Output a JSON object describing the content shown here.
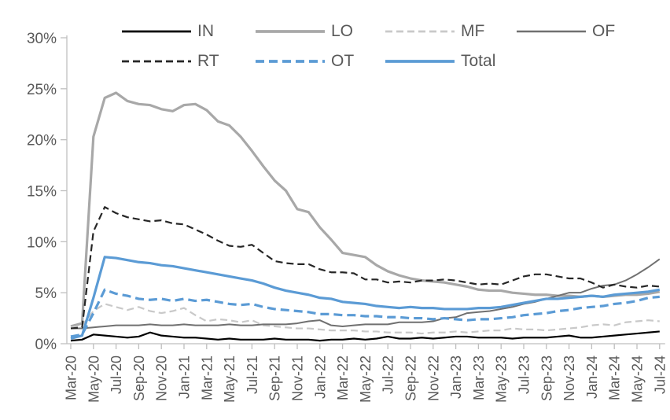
{
  "chart_data": {
    "type": "line",
    "title": "",
    "xlabel": "",
    "ylabel": "",
    "grid": false,
    "legend_position": "top",
    "legend_rows": [
      [
        "IN",
        "LO",
        "MF",
        "OF"
      ],
      [
        "RT",
        "OT",
        "Total"
      ]
    ],
    "y_axis": {
      "min": 0,
      "max": 30,
      "step": 5,
      "labels": [
        "0%",
        "5%",
        "10%",
        "15%",
        "20%",
        "25%",
        "30%"
      ]
    },
    "x_label_every": 2,
    "x": [
      "Mar-20",
      "Apr-20",
      "May-20",
      "Jun-20",
      "Jul-20",
      "Aug-20",
      "Sep-20",
      "Oct-20",
      "Nov-20",
      "Dec-20",
      "Jan-21",
      "Feb-21",
      "Mar-21",
      "Apr-21",
      "May-21",
      "Jun-21",
      "Jul-21",
      "Aug-21",
      "Sep-21",
      "Oct-21",
      "Nov-21",
      "Dec-21",
      "Jan-22",
      "Feb-22",
      "Mar-22",
      "Apr-22",
      "May-22",
      "Jun-22",
      "Jul-22",
      "Aug-22",
      "Sep-22",
      "Oct-22",
      "Nov-22",
      "Dec-22",
      "Jan-23",
      "Feb-23",
      "Mar-23",
      "Apr-23",
      "May-23",
      "Jun-23",
      "Jul-23",
      "Aug-23",
      "Sep-23",
      "Oct-23",
      "Nov-23",
      "Dec-23",
      "Jan-24",
      "Feb-24",
      "Mar-24",
      "Apr-24",
      "May-24",
      "Jun-24",
      "Jul-24"
    ],
    "series": [
      {
        "name": "IN",
        "color": "#000000",
        "dash": "solid",
        "width": 2.2,
        "values": [
          0.3,
          0.4,
          0.9,
          0.8,
          0.7,
          0.6,
          0.7,
          1.1,
          0.8,
          0.7,
          0.6,
          0.6,
          0.5,
          0.4,
          0.5,
          0.4,
          0.4,
          0.4,
          0.5,
          0.4,
          0.4,
          0.4,
          0.3,
          0.4,
          0.4,
          0.5,
          0.4,
          0.5,
          0.7,
          0.5,
          0.5,
          0.6,
          0.5,
          0.6,
          0.7,
          0.7,
          0.6,
          0.6,
          0.6,
          0.5,
          0.6,
          0.6,
          0.6,
          0.7,
          0.8,
          0.6,
          0.6,
          0.7,
          0.8,
          0.9,
          1.0,
          1.1,
          1.2
        ]
      },
      {
        "name": "LO",
        "color": "#a8a8a8",
        "dash": "solid",
        "width": 3.2,
        "values": [
          1.7,
          2.0,
          20.3,
          24.1,
          24.6,
          23.8,
          23.5,
          23.4,
          23.0,
          22.8,
          23.4,
          23.5,
          22.9,
          21.8,
          21.4,
          20.3,
          18.9,
          17.4,
          16.0,
          15.0,
          13.2,
          12.9,
          11.4,
          10.2,
          8.9,
          8.7,
          8.5,
          7.7,
          7.1,
          6.7,
          6.4,
          6.2,
          6.1,
          6.0,
          5.8,
          5.6,
          5.3,
          5.2,
          5.2,
          5.0,
          4.9,
          4.8,
          4.8,
          4.7,
          4.7,
          4.6,
          4.7,
          4.6,
          4.7,
          4.8,
          4.8,
          4.9,
          5.1
        ]
      },
      {
        "name": "MF",
        "color": "#c9c9c9",
        "dash": "dashed",
        "width": 2.2,
        "values": [
          1.6,
          1.8,
          3.2,
          3.9,
          3.6,
          3.3,
          3.6,
          3.2,
          3.0,
          3.2,
          3.5,
          2.8,
          2.2,
          2.4,
          2.3,
          2.1,
          2.3,
          1.8,
          1.7,
          1.6,
          1.5,
          1.5,
          1.4,
          1.3,
          1.3,
          1.3,
          1.2,
          1.2,
          1.1,
          1.1,
          1.1,
          1.0,
          1.1,
          1.1,
          1.2,
          1.1,
          1.2,
          1.3,
          1.3,
          1.5,
          1.4,
          1.4,
          1.3,
          1.4,
          1.5,
          1.6,
          1.8,
          1.9,
          1.8,
          2.1,
          2.2,
          2.3,
          2.2
        ]
      },
      {
        "name": "OF",
        "color": "#707070",
        "dash": "solid",
        "width": 2,
        "values": [
          1.5,
          1.5,
          1.6,
          1.7,
          1.8,
          1.8,
          1.8,
          1.9,
          1.8,
          1.8,
          1.9,
          1.8,
          1.8,
          1.8,
          1.9,
          1.8,
          1.8,
          1.9,
          1.9,
          1.9,
          2.0,
          2.2,
          2.3,
          1.8,
          1.7,
          1.8,
          1.9,
          1.9,
          1.9,
          2.1,
          2.1,
          2.1,
          2.2,
          2.5,
          2.6,
          3.0,
          3.1,
          3.2,
          3.4,
          3.6,
          3.9,
          4.1,
          4.4,
          4.7,
          5.0,
          5.0,
          5.4,
          5.7,
          5.8,
          6.2,
          6.8,
          7.5,
          8.3
        ]
      },
      {
        "name": "RT",
        "color": "#262626",
        "dash": "dashed",
        "width": 2.2,
        "values": [
          1.5,
          1.6,
          11.0,
          13.4,
          12.8,
          12.4,
          12.2,
          12.0,
          12.1,
          11.8,
          11.7,
          11.2,
          10.7,
          10.1,
          9.6,
          9.5,
          9.7,
          8.9,
          8.1,
          7.9,
          7.8,
          7.8,
          7.3,
          7.0,
          7.0,
          6.9,
          6.3,
          6.3,
          6.0,
          6.1,
          6.0,
          6.2,
          6.2,
          6.3,
          6.2,
          6.0,
          5.8,
          5.9,
          5.8,
          6.2,
          6.6,
          6.8,
          6.8,
          6.6,
          6.4,
          6.4,
          6.0,
          5.5,
          5.8,
          5.6,
          5.5,
          5.7,
          5.6
        ]
      },
      {
        "name": "OT",
        "color": "#5b9bd5",
        "dash": "dashed",
        "width": 3.2,
        "values": [
          0.7,
          0.9,
          3.0,
          5.3,
          4.9,
          4.7,
          4.4,
          4.3,
          4.4,
          4.2,
          4.4,
          4.2,
          4.3,
          4.1,
          3.9,
          3.8,
          3.9,
          3.6,
          3.4,
          3.3,
          3.2,
          3.1,
          2.9,
          2.9,
          2.8,
          2.8,
          2.7,
          2.7,
          2.6,
          2.6,
          2.5,
          2.5,
          2.4,
          2.5,
          2.4,
          2.3,
          2.4,
          2.4,
          2.5,
          2.6,
          2.8,
          2.9,
          3.0,
          3.2,
          3.3,
          3.5,
          3.6,
          3.7,
          3.9,
          4.0,
          4.2,
          4.5,
          4.6
        ]
      },
      {
        "name": "Total",
        "color": "#5b9bd5",
        "dash": "solid",
        "width": 3.2,
        "values": [
          0.5,
          0.8,
          4.5,
          8.5,
          8.4,
          8.2,
          8.0,
          7.9,
          7.7,
          7.6,
          7.4,
          7.2,
          7.0,
          6.8,
          6.6,
          6.4,
          6.2,
          5.9,
          5.5,
          5.2,
          5.0,
          4.8,
          4.5,
          4.4,
          4.1,
          4.0,
          3.9,
          3.7,
          3.6,
          3.5,
          3.6,
          3.5,
          3.5,
          3.4,
          3.4,
          3.4,
          3.5,
          3.5,
          3.6,
          3.8,
          4.0,
          4.2,
          4.4,
          4.4,
          4.5,
          4.6,
          4.7,
          4.6,
          4.8,
          4.9,
          5.0,
          5.1,
          5.3
        ]
      }
    ],
    "colors": {
      "axis": "#bfbfbf",
      "tick_label": "#595959",
      "background": "#ffffff",
      "accent_blue": "#5b9bd5"
    }
  }
}
